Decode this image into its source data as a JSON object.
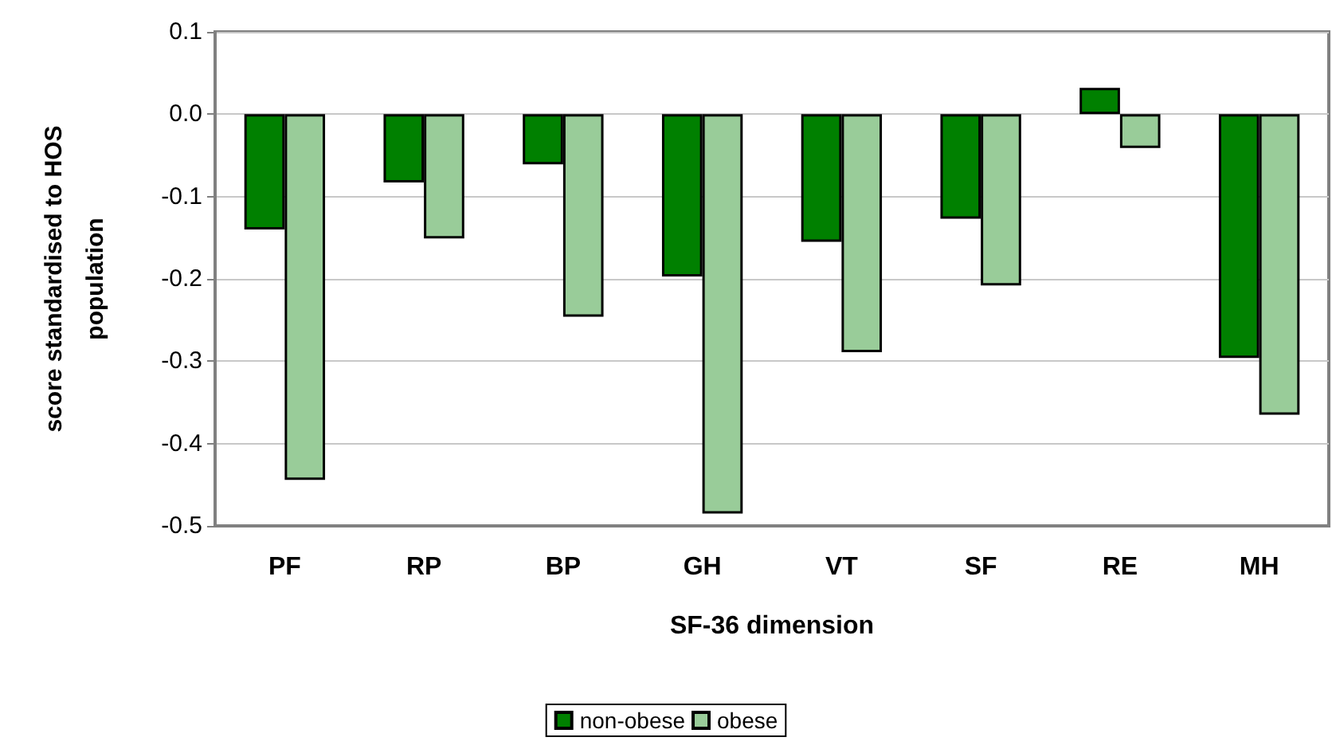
{
  "chart_data": {
    "type": "bar",
    "xlabel": "SF-36 dimension",
    "ylabel": "score standardised to HOS\npopulation",
    "categories": [
      "PF",
      "RP",
      "BP",
      "GH",
      "VT",
      "SF",
      "RE",
      "MH"
    ],
    "series": [
      {
        "name": "non-obese",
        "color": "#008000",
        "values": [
          -0.14,
          -0.083,
          -0.061,
          -0.197,
          -0.155,
          -0.127,
          0.032,
          -0.296
        ]
      },
      {
        "name": "obese",
        "color": "#99cc99",
        "values": [
          -0.444,
          -0.151,
          -0.246,
          -0.485,
          -0.289,
          -0.208,
          -0.041,
          -0.365
        ]
      }
    ],
    "ylim": [
      -0.5,
      0.1
    ],
    "yticks": [
      -0.5,
      -0.4,
      -0.3,
      -0.2,
      -0.1,
      {
        "value": 0,
        "label": "0.0"
      },
      0.1
    ],
    "grid": "y",
    "legend": "bottom"
  }
}
